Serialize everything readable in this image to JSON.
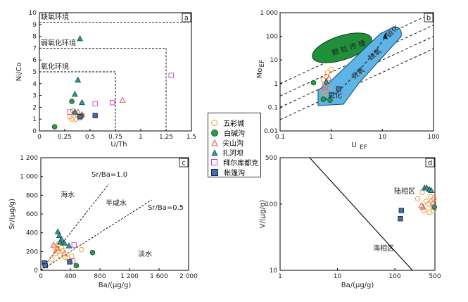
{
  "legend": [
    {
      "name": "五彩城",
      "marker": "circle-open",
      "color": "#f0a030"
    },
    {
      "name": "白碱沟",
      "marker": "circle-filled",
      "color": "#2e9a4a"
    },
    {
      "name": "尖山沟",
      "marker": "triangle-open",
      "color": "#e05050"
    },
    {
      "name": "扎河坝",
      "marker": "triangle-filled",
      "color": "#2aa090"
    },
    {
      "name": "拜尔库都克",
      "marker": "square-open",
      "color": "#d040c0"
    },
    {
      "name": "帐篷沟",
      "marker": "square-filled",
      "color": "#3f6fb5"
    }
  ],
  "chart_data": [
    {
      "id": "a",
      "type": "scatter",
      "tag": "a",
      "xlabel": "U/Th",
      "ylabel": "Ni/Co",
      "xlim": [
        0,
        1.5
      ],
      "ylim": [
        0,
        10
      ],
      "xticks": [
        0,
        0.25,
        0.5,
        0.75,
        1,
        1.25,
        1.5
      ],
      "xtick_labels": [
        "0",
        "0.25",
        "0.5",
        "0.75",
        "1",
        "1.25",
        "1.5"
      ],
      "yticks": [
        0,
        1,
        2,
        3,
        4,
        5,
        6,
        7,
        8,
        9,
        10
      ],
      "zones": [
        {
          "label": "缺氧环境",
          "x_to": 1.5,
          "y_from": 9.2
        },
        {
          "label": "弱氧化环境",
          "x_to": 1.25,
          "y_from": 7.0
        },
        {
          "label": "氧化环境",
          "x_to": 0.75,
          "y_from": 5.0
        }
      ],
      "series": [
        {
          "name": "五彩城",
          "points": [
            [
              0.3,
              1.2
            ],
            [
              0.32,
              1.0
            ],
            [
              0.35,
              1.5
            ],
            [
              0.38,
              1.3
            ],
            [
              0.4,
              1.1
            ],
            [
              0.33,
              1.7
            ],
            [
              0.36,
              1.0
            ]
          ]
        },
        {
          "name": "白碱沟",
          "points": [
            [
              0.15,
              0.35
            ],
            [
              0.32,
              2.5
            ],
            [
              0.42,
              1.3
            ]
          ]
        },
        {
          "name": "尖山沟",
          "points": [
            [
              0.38,
              1.6
            ],
            [
              0.42,
              1.4
            ],
            [
              0.82,
              2.6
            ]
          ]
        },
        {
          "name": "扎河坝",
          "points": [
            [
              0.4,
              7.8
            ],
            [
              0.38,
              4.3
            ],
            [
              0.35,
              3.1
            ],
            [
              0.42,
              2.4
            ],
            [
              0.35,
              1.6
            ]
          ]
        },
        {
          "name": "拜尔库都克",
          "points": [
            [
              0.3,
              1.6
            ],
            [
              0.55,
              2.3
            ],
            [
              0.72,
              2.4
            ],
            [
              1.3,
              4.7
            ]
          ]
        },
        {
          "name": "帐篷沟",
          "points": [
            [
              0.55,
              1.3
            ],
            [
              0.4,
              1.2
            ]
          ]
        }
      ]
    },
    {
      "id": "b",
      "type": "scatter",
      "tag": "b",
      "xlabel": "U",
      "xlabel_sub": "EF",
      "ylabel": "Mo",
      "ylabel_sub": "EF",
      "x_scale": "log",
      "y_scale": "log",
      "xlim": [
        0.1,
        100
      ],
      "ylim": [
        0.01,
        1000
      ],
      "xtick_labels": [
        "0.1",
        "1",
        "10",
        "100"
      ],
      "ytick_labels": [
        "0.01",
        "0.1",
        "1",
        "10",
        "100",
        "1 000"
      ],
      "regions": [
        {
          "label": "颗 粒 传 播"
        },
        {
          "label": "硫化"
        },
        {
          "label": "缺氧"
        },
        {
          "label": "贫氧"
        },
        {
          "label": "氧化"
        }
      ],
      "series": [
        {
          "name": "五彩城",
          "points": [
            [
              0.7,
              1.5
            ],
            [
              0.8,
              2.0
            ],
            [
              0.75,
              1.0
            ],
            [
              0.9,
              0.7
            ],
            [
              0.7,
              0.5
            ],
            [
              0.85,
              3.0
            ],
            [
              1.0,
              4.0
            ],
            [
              0.75,
              0.4
            ]
          ]
        },
        {
          "name": "白碱沟",
          "points": [
            [
              0.45,
              1.1
            ],
            [
              0.7,
              0.22
            ],
            [
              0.95,
              0.2
            ]
          ]
        },
        {
          "name": "尖山沟",
          "points": [
            [
              0.9,
              1.7
            ]
          ]
        },
        {
          "name": "扎河坝",
          "points": [
            [
              0.8,
              1.2
            ]
          ]
        },
        {
          "name": "拜尔库都克",
          "points": [
            [
              0.75,
              0.7
            ]
          ]
        },
        {
          "name": "帐篷沟",
          "points": [
            [
              1.4,
              0.6
            ]
          ]
        }
      ]
    },
    {
      "id": "c",
      "type": "scatter",
      "tag": "c",
      "xlabel": "Ba/(μg/g)",
      "ylabel": "Sr/(μg/g)",
      "xlim": [
        0,
        2000
      ],
      "ylim": [
        0,
        1200
      ],
      "xticks": [
        0,
        400,
        800,
        1200,
        1600,
        2000
      ],
      "xtick_labels": [
        "0",
        "400",
        "800",
        "1 200",
        "1 600",
        "2 000"
      ],
      "yticks": [
        0,
        200,
        400,
        600,
        800,
        1000,
        1200
      ],
      "ytick_labels": [
        "0",
        "200",
        "400",
        "600",
        "800",
        "1 000",
        "1 200"
      ],
      "lines": [
        {
          "label": "Sr/Ba=1.0",
          "ratio": 1.0,
          "x_to": 920
        },
        {
          "label": "Sr/Ba=0.5",
          "ratio": 0.5,
          "x_to": 1500
        }
      ],
      "regions": [
        {
          "label": "海水"
        },
        {
          "label": "半咸水"
        },
        {
          "label": "淡水"
        }
      ],
      "series": [
        {
          "name": "五彩城",
          "points": [
            [
              150,
              120
            ],
            [
              200,
              180
            ],
            [
              230,
              200
            ],
            [
              260,
              160
            ],
            [
              300,
              210
            ],
            [
              330,
              140
            ],
            [
              280,
              240
            ],
            [
              360,
              130
            ],
            [
              420,
              150
            ],
            [
              550,
              220
            ],
            [
              190,
              250
            ],
            [
              240,
              280
            ]
          ]
        },
        {
          "name": "白碱沟",
          "points": [
            [
              700,
              190
            ],
            [
              480,
              50
            ]
          ]
        },
        {
          "name": "尖山沟",
          "points": [
            [
              170,
              270
            ],
            [
              220,
              230
            ],
            [
              320,
              180
            ]
          ]
        },
        {
          "name": "扎河坝",
          "points": [
            [
              230,
              410
            ],
            [
              250,
              370
            ],
            [
              280,
              330
            ],
            [
              320,
              290
            ],
            [
              260,
              300
            ],
            [
              380,
              260
            ]
          ]
        },
        {
          "name": "拜尔库都克",
          "points": [
            [
              450,
              270
            ],
            [
              430,
              100
            ]
          ]
        },
        {
          "name": "帐篷沟",
          "points": [
            [
              50,
              80
            ],
            [
              60,
              50
            ],
            [
              390,
              90
            ]
          ]
        }
      ]
    },
    {
      "id": "d",
      "type": "scatter",
      "tag": "d",
      "xlabel": "Ba/(μg/g)",
      "ylabel": "V/(μg/g)",
      "x_scale": "log",
      "y_scale": "log",
      "xlim": [
        1,
        500
      ],
      "ylim": [
        10,
        500
      ],
      "xtick_labels": [
        "1",
        "10",
        "100",
        "500"
      ],
      "ytick_labels": [
        "10",
        "100",
        "500"
      ],
      "regions": [
        {
          "label": "陆相区"
        },
        {
          "label": "海相区"
        }
      ],
      "series": [
        {
          "name": "五彩城",
          "points": [
            [
              250,
              120
            ],
            [
              320,
              80
            ],
            [
              380,
              100
            ],
            [
              420,
              130
            ],
            [
              460,
              90
            ],
            [
              480,
              120
            ],
            [
              300,
              150
            ],
            [
              350,
              110
            ],
            [
              400,
              75
            ],
            [
              440,
              110
            ],
            [
              470,
              80
            ]
          ]
        },
        {
          "name": "白碱沟",
          "points": [
            [
              490,
              90
            ]
          ]
        },
        {
          "name": "尖山沟",
          "points": [
            [
              290,
              95
            ],
            [
              310,
              90
            ]
          ]
        },
        {
          "name": "扎河坝",
          "points": [
            [
              330,
              175
            ],
            [
              360,
              175
            ],
            [
              400,
              165
            ],
            [
              430,
              160
            ]
          ]
        },
        {
          "name": "拜尔库都克",
          "points": [
            [
              470,
              100
            ]
          ]
        },
        {
          "name": "帐篷沟",
          "points": [
            [
              130,
              80
            ],
            [
              125,
              60
            ]
          ]
        }
      ]
    }
  ]
}
